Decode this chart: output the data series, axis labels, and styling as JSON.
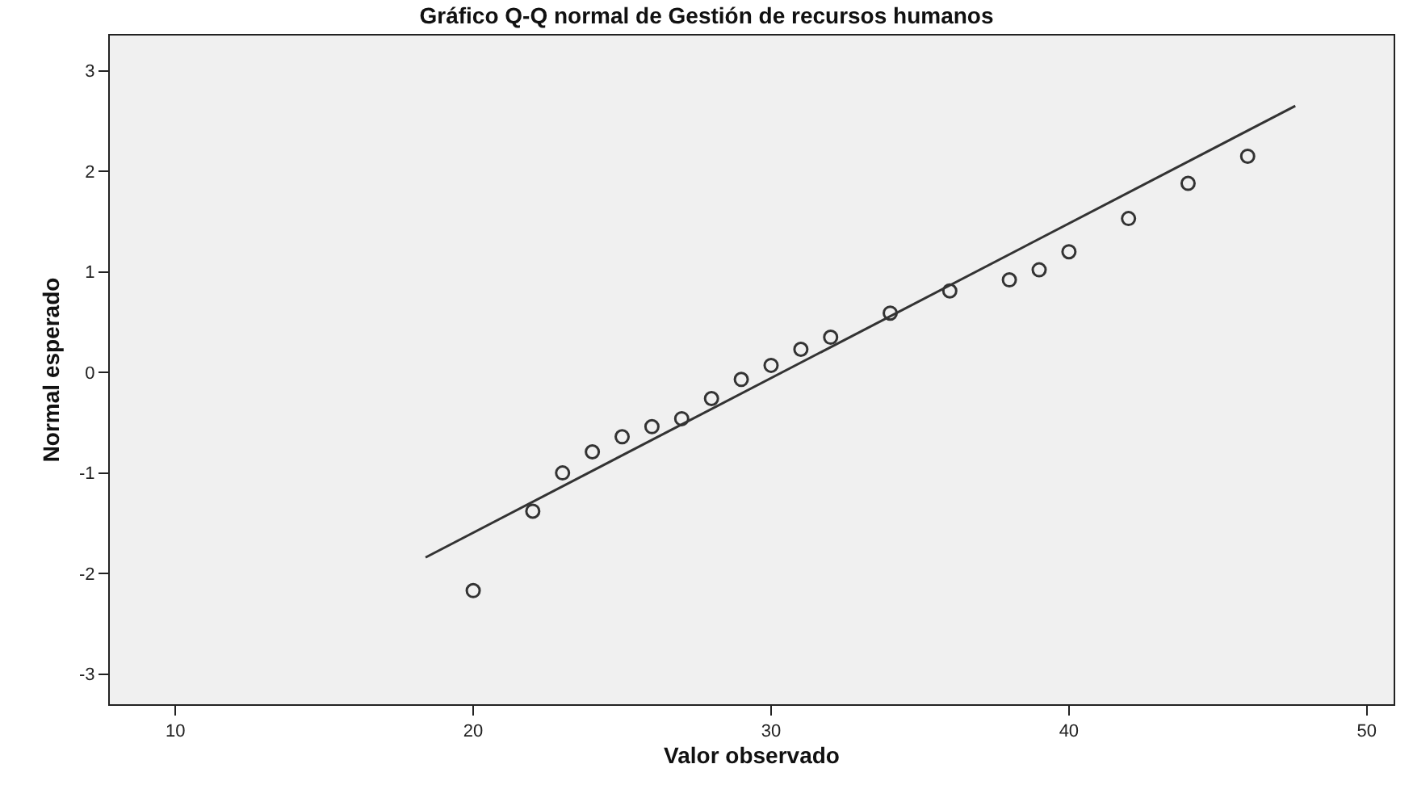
{
  "chart_data": {
    "type": "scatter",
    "title": "Gráfico Q-Q normal de Gestión de recursos humanos",
    "xlabel": "Valor observado",
    "ylabel": "Normal esperado",
    "series": [
      {
        "color": "#333333",
        "x": [
          20,
          22,
          23,
          24,
          25,
          26,
          27,
          28,
          29,
          30,
          31,
          32,
          34,
          36,
          38,
          39,
          40,
          42,
          44,
          46
        ],
        "values": [
          -2.17,
          -1.38,
          -1.0,
          -0.79,
          -0.64,
          -0.54,
          -0.46,
          -0.26,
          -0.07,
          0.07,
          0.23,
          0.35,
          0.59,
          0.81,
          0.92,
          1.02,
          1.2,
          1.53,
          1.88,
          2.15
        ]
      },
      {
        "type": "line",
        "marker": "none",
        "color": "#333333",
        "x": [
          18.4,
          47.6
        ],
        "values": [
          -1.84,
          2.65
        ]
      }
    ],
    "marker": "circle",
    "grid": false,
    "xlim": [
      7.8,
      50.9
    ],
    "xticks": [
      10,
      20,
      30,
      40,
      50
    ],
    "ylim": [
      -3.3,
      3.35
    ],
    "yticks": [
      -3,
      -2,
      -1,
      0,
      1,
      2,
      3
    ]
  }
}
